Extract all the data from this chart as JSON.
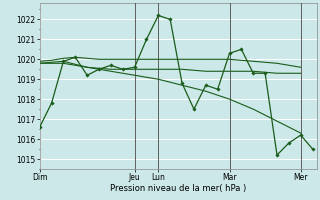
{
  "background_color": "#cce8e8",
  "plot_bg_color": "#cce8e8",
  "grid_color": "#ffffff",
  "line_color": "#1a5c1a",
  "marker_color": "#1a5c1a",
  "xlabel_text": "Pression niveau de la mer( hPa )",
  "ylim": [
    1014.5,
    1022.8
  ],
  "yticks": [
    1015,
    1016,
    1017,
    1018,
    1019,
    1020,
    1021,
    1022
  ],
  "xtick_labels": [
    "Dim",
    "",
    "Jeu",
    "Lun",
    "",
    "Mar",
    "",
    "Mer"
  ],
  "xtick_positions": [
    0,
    24,
    48,
    60,
    78,
    96,
    114,
    132
  ],
  "xlim": [
    0,
    140
  ],
  "series": [
    {
      "x": [
        0,
        6,
        12,
        18,
        24,
        30,
        36,
        42,
        48,
        54,
        60,
        66,
        72,
        78,
        84,
        90,
        96,
        102,
        108,
        114,
        120,
        126,
        132,
        138
      ],
      "y": [
        1016.6,
        1017.8,
        1019.9,
        1020.1,
        1019.2,
        1019.5,
        1019.7,
        1019.5,
        1019.6,
        1021.0,
        1022.2,
        1022.0,
        1018.8,
        1017.5,
        1018.7,
        1018.5,
        1020.3,
        1020.5,
        1019.3,
        1019.3,
        1015.2,
        1015.8,
        1016.2,
        1015.5
      ],
      "lw": 0.9,
      "marker": "D",
      "ms": 1.8
    },
    {
      "x": [
        0,
        6,
        12,
        18,
        24,
        30,
        36,
        42,
        48,
        54,
        60,
        66,
        72,
        84,
        96,
        108,
        120,
        132
      ],
      "y": [
        1019.9,
        1019.95,
        1020.05,
        1020.1,
        1020.05,
        1020.0,
        1020.0,
        1020.0,
        1020.0,
        1020.0,
        1020.0,
        1020.0,
        1020.0,
        1020.0,
        1020.0,
        1019.9,
        1019.8,
        1019.6
      ],
      "lw": 0.8,
      "marker": "",
      "ms": 0
    },
    {
      "x": [
        0,
        12,
        24,
        36,
        48,
        60,
        72,
        84,
        96,
        108,
        120,
        132
      ],
      "y": [
        1019.8,
        1019.9,
        1019.6,
        1019.5,
        1019.5,
        1019.5,
        1019.5,
        1019.4,
        1019.4,
        1019.4,
        1019.3,
        1019.3
      ],
      "lw": 0.8,
      "marker": "",
      "ms": 0
    },
    {
      "x": [
        0,
        12,
        24,
        36,
        48,
        60,
        72,
        84,
        96,
        108,
        120,
        132
      ],
      "y": [
        1019.8,
        1019.8,
        1019.6,
        1019.4,
        1019.2,
        1019.0,
        1018.7,
        1018.4,
        1018.0,
        1017.5,
        1016.9,
        1016.3
      ],
      "lw": 0.8,
      "marker": "",
      "ms": 0
    }
  ],
  "vlines": [
    {
      "x": 48,
      "color": "#444444",
      "lw": 0.6
    },
    {
      "x": 60,
      "color": "#444444",
      "lw": 0.6
    },
    {
      "x": 96,
      "color": "#444444",
      "lw": 0.6
    },
    {
      "x": 132,
      "color": "#444444",
      "lw": 0.6
    }
  ]
}
